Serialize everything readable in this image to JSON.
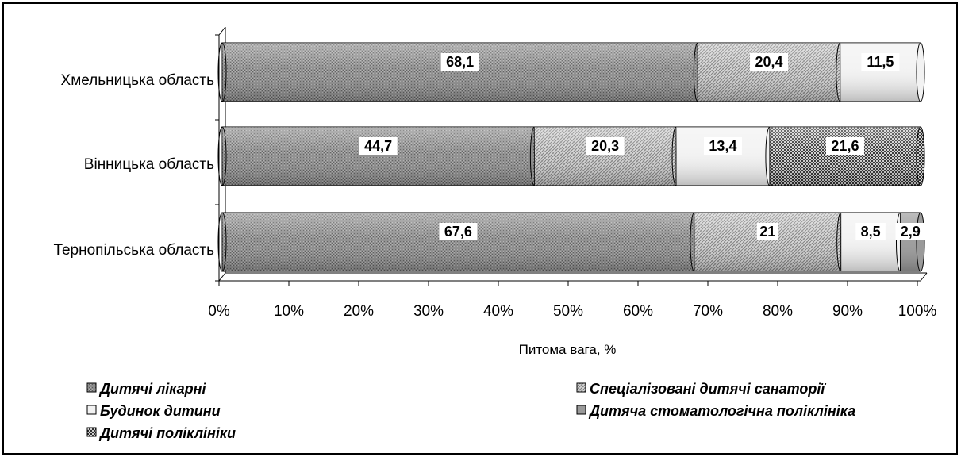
{
  "chart_data": {
    "type": "bar",
    "orientation": "horizontal",
    "stacked": "percent",
    "categories": [
      "Хмельницька область",
      "Вінницька область",
      "Тернопільська область"
    ],
    "series": [
      {
        "name": "Дитячі лікарні",
        "values": [
          68.1,
          44.7,
          67.6
        ],
        "labels": [
          "68,1",
          "44,7",
          "67,6"
        ],
        "fill": "#8c8c8c",
        "pattern": "fine-dots"
      },
      {
        "name": "Спеціалізовані дитячі санаторії",
        "values": [
          20.4,
          20.3,
          21.0
        ],
        "labels": [
          "20,4",
          "20,3",
          "21"
        ],
        "fill": "#cfcfcf",
        "pattern": "weave"
      },
      {
        "name": "Будинок дитини",
        "values": [
          11.5,
          13.4,
          8.5
        ],
        "labels": [
          "11,5",
          "13,4",
          "8,5"
        ],
        "fill": "#f2f2f2",
        "pattern": "plain"
      },
      {
        "name": "Дитяча стоматологічна поліклініка",
        "values": [
          0.0,
          0.0,
          2.9
        ],
        "labels": [
          "",
          "",
          "2,9"
        ],
        "fill": "#9a9a9a",
        "pattern": "plain"
      },
      {
        "name": "Дитячі поліклініки",
        "values": [
          0.0,
          21.6,
          0.0
        ],
        "labels": [
          "",
          "21,6",
          ""
        ],
        "fill": "#4a4a4a",
        "pattern": "checker"
      }
    ],
    "xlim": [
      0,
      100
    ],
    "xticks": [
      "0%",
      "10%",
      "20%",
      "30%",
      "40%",
      "50%",
      "60%",
      "70%",
      "80%",
      "90%",
      "100%"
    ],
    "xlabel": "Питома вага, %",
    "ylabel": "",
    "legend_position": "bottom",
    "grid": false
  }
}
